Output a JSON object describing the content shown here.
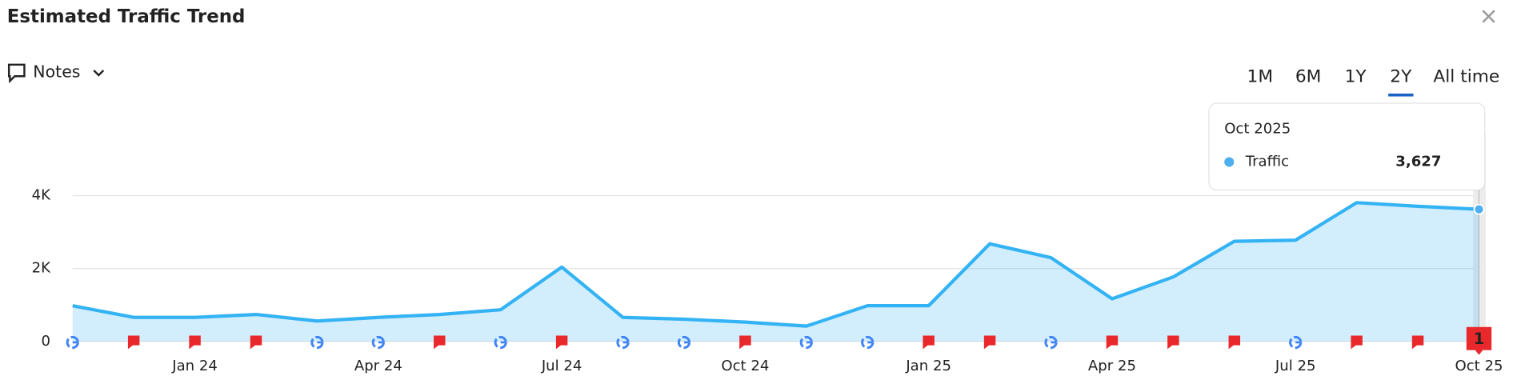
{
  "header": {
    "title": "Estimated Traffic Trend",
    "notes": "Notes",
    "periods": [
      "1M",
      "6M",
      "1Y",
      "2Y",
      "All time"
    ],
    "selected": 3
  },
  "chart_data": {
    "type": "line",
    "categories": [
      null,
      null,
      "Jan 24",
      null,
      null,
      "Apr 24",
      null,
      null,
      "Jul 24",
      null,
      null,
      "Oct 24",
      null,
      null,
      "Jan 25",
      null,
      null,
      "Apr 25",
      null,
      null,
      "Jul 25",
      null,
      null,
      "Oct 25"
    ],
    "series": [
      {
        "name": "Traffic",
        "color": "#34b3f4",
        "values": [
          980,
          660,
          660,
          740,
          560,
          660,
          740,
          870,
          2040,
          660,
          610,
          530,
          420,
          980,
          980,
          2680,
          2300,
          1170,
          1770,
          2750,
          2780,
          3810,
          3710,
          3627
        ]
      }
    ],
    "ylim": [
      0,
      5720
    ],
    "yticks": [
      0,
      {
        "value": 2000,
        "label": "2K"
      },
      {
        "value": 4000,
        "label": "4K"
      }
    ],
    "grid": true,
    "tooltip": {
      "title": "Oct 2025",
      "label": "3,627"
    },
    "note_badge": "1"
  }
}
